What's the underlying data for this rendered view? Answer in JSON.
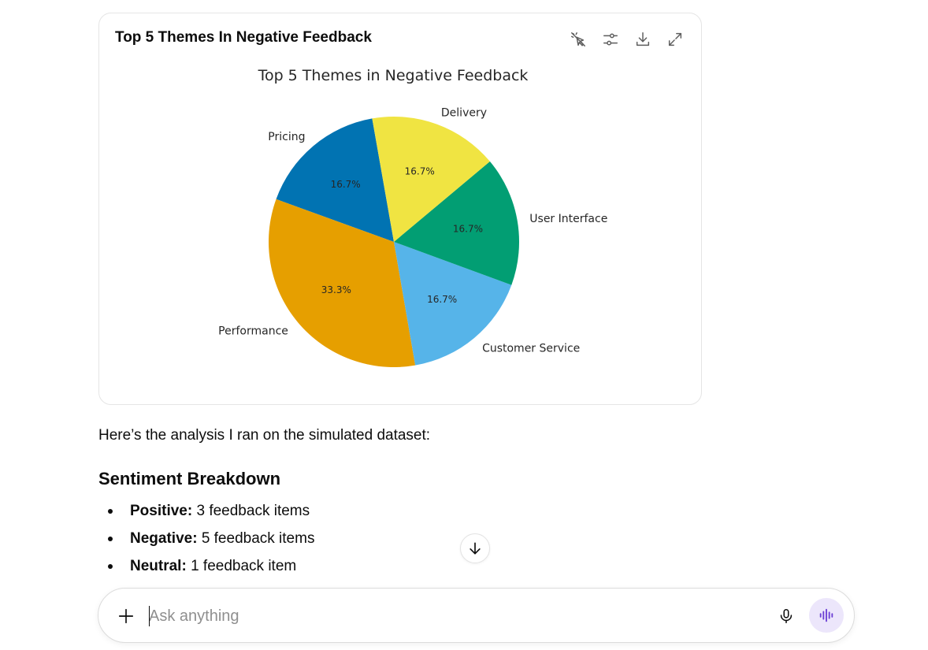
{
  "card": {
    "title": "Top 5 Themes In Negative Feedback",
    "tools": [
      {
        "icon": "interactive-off-icon"
      },
      {
        "icon": "sliders-icon"
      },
      {
        "icon": "download-icon"
      },
      {
        "icon": "expand-icon"
      }
    ]
  },
  "chart_data": {
    "type": "pie",
    "title": "Top 5 Themes in Negative Feedback",
    "slices": [
      {
        "label": "Pricing",
        "value": 16.7,
        "display": "16.7%",
        "color": "#0173b2"
      },
      {
        "label": "Performance",
        "value": 33.3,
        "display": "33.3%",
        "color": "#e69f00"
      },
      {
        "label": "Customer Service",
        "value": 16.7,
        "display": "16.7%",
        "color": "#56b4e9"
      },
      {
        "label": "User Interface",
        "value": 16.7,
        "display": "16.7%",
        "color": "#029e73"
      },
      {
        "label": "Delivery",
        "value": 16.7,
        "display": "16.7%",
        "color": "#f0e442"
      }
    ],
    "start_angle_deg": 100,
    "direction": "counterclockwise",
    "legend": "none"
  },
  "intro_text": "Here’s the analysis I ran on the simulated dataset:",
  "section_heading": "Sentiment Breakdown",
  "breakdown": [
    {
      "label": "Positive:",
      "text": "3 feedback items"
    },
    {
      "label": "Negative:",
      "text": "5 feedback items"
    },
    {
      "label": "Neutral:",
      "text": "1 feedback item"
    }
  ],
  "composer": {
    "placeholder": "Ask anything",
    "value": ""
  },
  "icons": {
    "scroll": "arrow-down-icon",
    "add": "plus-icon",
    "mic": "microphone-icon",
    "voice": "voice-waveform-icon"
  }
}
